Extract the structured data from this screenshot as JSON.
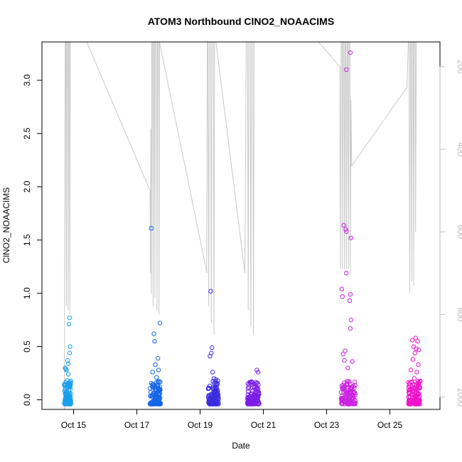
{
  "chart_data": {
    "type": "scatter",
    "title": "ATOM3 Northbound ClNO2_NOAACIMS",
    "xlabel": "Date",
    "ylabel": "ClNO2_NOAACIMS",
    "xlim": [
      "2016-10-14T00:00",
      "2016-10-26T14:00"
    ],
    "ylim": [
      -0.09,
      3.36
    ],
    "y_ticks": [
      0.0,
      0.5,
      1.0,
      1.5,
      2.0,
      2.5,
      3.0
    ],
    "x_ticks": [
      {
        "label": "Oct 15",
        "date": "2016-10-15T00:00"
      },
      {
        "label": "Oct 17",
        "date": "2016-10-17T00:00"
      },
      {
        "label": "Oct 19",
        "date": "2016-10-19T00:00"
      },
      {
        "label": "Oct 21",
        "date": "2016-10-21T00:00"
      },
      {
        "label": "Oct 23",
        "date": "2016-10-23T00:00"
      },
      {
        "label": "Oct 25",
        "date": "2016-10-25T00:00"
      }
    ],
    "secondary_axis": {
      "side": "right",
      "ylim": [
        1030,
        140
      ],
      "ticks": [
        200,
        400,
        600,
        800,
        1000
      ],
      "color": "#bdbdbd"
    },
    "grid": false,
    "legend": "none",
    "flights": [
      {
        "start": "2016-10-14T17:00",
        "end": "2016-10-14T22:00",
        "color": "#1a9fef",
        "samples": [
          [
            "2016-10-14T17:30",
            0.3
          ],
          [
            "2016-10-14T18:00",
            0.29
          ],
          [
            "2016-10-14T18:30",
            0.28
          ],
          [
            "2016-10-14T19:00",
            0.18
          ],
          [
            "2016-10-14T19:30",
            0.37
          ],
          [
            "2016-10-14T20:00",
            0.34
          ],
          [
            "2016-10-14T20:30",
            0.71
          ],
          [
            "2016-10-14T21:00",
            0.77
          ],
          [
            "2016-10-14T21:20",
            0.5
          ],
          [
            "2016-10-14T21:00",
            0.44
          ],
          [
            "2016-10-14T20:00",
            0.24
          ],
          [
            "2016-10-14T19:00",
            0.12
          ]
        ]
      },
      {
        "start": "2016-10-17T10:00",
        "end": "2016-10-17T18:00",
        "color": "#1466e6",
        "samples": [
          [
            "2016-10-17T11:00",
            1.61
          ],
          [
            "2016-10-17T13:00",
            0.62
          ],
          [
            "2016-10-17T13:30",
            0.55
          ],
          [
            "2016-10-17T17:30",
            0.72
          ],
          [
            "2016-10-17T16:00",
            0.39
          ],
          [
            "2016-10-17T14:00",
            0.33
          ],
          [
            "2016-10-17T12:00",
            0.26
          ],
          [
            "2016-10-17T15:00",
            0.21
          ],
          [
            "2016-10-17T16:30",
            0.28
          ]
        ]
      },
      {
        "start": "2016-10-19T06:00",
        "end": "2016-10-19T14:00",
        "color": "#3a2ce0",
        "samples": [
          [
            "2016-10-19T08:00",
            1.02
          ],
          [
            "2016-10-19T09:00",
            0.49
          ],
          [
            "2016-10-19T08:30",
            0.44
          ],
          [
            "2016-10-19T07:30",
            0.41
          ],
          [
            "2016-10-19T09:30",
            0.26
          ],
          [
            "2016-10-19T10:30",
            0.2
          ],
          [
            "2016-10-19T12:00",
            0.19
          ],
          [
            "2016-10-19T13:00",
            0.15
          ]
        ]
      },
      {
        "start": "2016-10-20T12:00",
        "end": "2016-10-20T21:00",
        "color": "#7a1ee6",
        "samples": [
          [
            "2016-10-20T19:00",
            0.28
          ],
          [
            "2016-10-20T20:00",
            0.26
          ],
          [
            "2016-10-20T15:00",
            0.17
          ],
          [
            "2016-10-20T17:00",
            0.15
          ],
          [
            "2016-10-20T13:00",
            0.12
          ]
        ]
      },
      {
        "start": "2016-10-23T11:00",
        "end": "2016-10-23T22:00",
        "color": "#cc22e0",
        "samples": [
          [
            "2016-10-23T18:00",
            3.26
          ],
          [
            "2016-10-23T15:00",
            3.1
          ],
          [
            "2016-10-23T13:00",
            1.64
          ],
          [
            "2016-10-23T15:00",
            1.58
          ],
          [
            "2016-10-23T14:30",
            1.6
          ],
          [
            "2016-10-23T18:30",
            1.52
          ],
          [
            "2016-10-23T15:00",
            1.19
          ],
          [
            "2016-10-23T11:30",
            1.04
          ],
          [
            "2016-10-23T12:00",
            0.97
          ],
          [
            "2016-10-23T18:00",
            0.99
          ],
          [
            "2016-10-23T17:30",
            0.93
          ],
          [
            "2016-10-23T18:30",
            0.75
          ],
          [
            "2016-10-23T18:00",
            0.67
          ],
          [
            "2016-10-23T14:00",
            0.46
          ],
          [
            "2016-10-23T12:30",
            0.43
          ],
          [
            "2016-10-23T13:30",
            0.37
          ],
          [
            "2016-10-23T19:30",
            0.36
          ],
          [
            "2016-10-23T16:00",
            0.3
          ]
        ]
      },
      {
        "start": "2016-10-25T14:00",
        "end": "2016-10-25T23:00",
        "color": "#f011cc",
        "samples": [
          [
            "2016-10-25T19:30",
            0.58
          ],
          [
            "2016-10-25T17:00",
            0.56
          ],
          [
            "2016-10-25T21:00",
            0.55
          ],
          [
            "2016-10-25T18:00",
            0.5
          ],
          [
            "2016-10-25T20:00",
            0.48
          ],
          [
            "2016-10-25T22:00",
            0.47
          ],
          [
            "2016-10-25T19:00",
            0.44
          ],
          [
            "2016-10-25T17:30",
            0.38
          ],
          [
            "2016-10-25T21:30",
            0.33
          ],
          [
            "2016-10-25T16:00",
            0.28
          ],
          [
            "2016-10-25T20:30",
            0.26
          ],
          [
            "2016-10-25T18:30",
            0.2
          ]
        ]
      }
    ],
    "altitude_track": [
      [
        "2016-10-14T15:00",
        1030
      ],
      [
        "2016-10-14T17:00",
        1030
      ],
      [
        "2016-10-14T17:20",
        600
      ],
      [
        "2016-10-14T17:40",
        140
      ],
      [
        "2016-10-14T18:10",
        140
      ],
      [
        "2016-10-14T18:30",
        780
      ],
      [
        "2016-10-14T18:50",
        140
      ],
      [
        "2016-10-14T19:30",
        140
      ],
      [
        "2016-10-14T19:50",
        790
      ],
      [
        "2016-10-14T20:10",
        140
      ],
      [
        "2016-10-14T20:50",
        140
      ],
      [
        "2016-10-14T21:10",
        800
      ],
      [
        "2016-10-14T21:30",
        140
      ],
      [
        "2016-10-15T10:00",
        140
      ],
      [
        "2016-10-17T10:00",
        500
      ],
      [
        "2016-10-17T10:20",
        700
      ],
      [
        "2016-10-17T10:40",
        350
      ],
      [
        "2016-10-17T11:00",
        750
      ],
      [
        "2016-10-17T11:20",
        140
      ],
      [
        "2016-10-17T12:00",
        140
      ],
      [
        "2016-10-17T12:20",
        780
      ],
      [
        "2016-10-17T12:40",
        140
      ],
      [
        "2016-10-17T13:20",
        140
      ],
      [
        "2016-10-17T13:40",
        760
      ],
      [
        "2016-10-17T14:00",
        140
      ],
      [
        "2016-10-17T15:00",
        140
      ],
      [
        "2016-10-17T15:20",
        790
      ],
      [
        "2016-10-17T15:40",
        140
      ],
      [
        "2016-10-17T16:30",
        140
      ],
      [
        "2016-10-17T16:50",
        800
      ],
      [
        "2016-10-17T17:10",
        140
      ],
      [
        "2016-10-19T04:00",
        680
      ],
      [
        "2016-10-19T05:00",
        700
      ],
      [
        "2016-10-19T05:30",
        140
      ],
      [
        "2016-10-19T06:00",
        140
      ],
      [
        "2016-10-19T06:30",
        780
      ],
      [
        "2016-10-19T07:00",
        140
      ],
      [
        "2016-10-19T08:00",
        140
      ],
      [
        "2016-10-19T08:30",
        820
      ],
      [
        "2016-10-19T09:00",
        140
      ],
      [
        "2016-10-19T10:00",
        140
      ],
      [
        "2016-10-19T10:30",
        850
      ],
      [
        "2016-10-19T11:00",
        140
      ],
      [
        "2016-10-19T12:00",
        140
      ],
      [
        "2016-10-20T10:00",
        700
      ],
      [
        "2016-10-20T11:00",
        140
      ],
      [
        "2016-10-20T12:00",
        140
      ],
      [
        "2016-10-20T12:30",
        790
      ],
      [
        "2016-10-20T13:00",
        140
      ],
      [
        "2016-10-20T14:00",
        140
      ],
      [
        "2016-10-20T14:30",
        830
      ],
      [
        "2016-10-20T15:00",
        140
      ],
      [
        "2016-10-20T16:00",
        140
      ],
      [
        "2016-10-20T16:30",
        850
      ],
      [
        "2016-10-20T17:00",
        140
      ],
      [
        "2016-10-20T18:00",
        140
      ],
      [
        "2016-10-22T18:00",
        140
      ],
      [
        "2016-10-23T10:00",
        200
      ],
      [
        "2016-10-23T10:30",
        690
      ],
      [
        "2016-10-23T11:00",
        140
      ],
      [
        "2016-10-23T11:40",
        140
      ],
      [
        "2016-10-23T12:00",
        690
      ],
      [
        "2016-10-23T12:30",
        140
      ],
      [
        "2016-10-23T13:10",
        140
      ],
      [
        "2016-10-23T13:30",
        690
      ],
      [
        "2016-10-23T14:00",
        140
      ],
      [
        "2016-10-23T14:40",
        140
      ],
      [
        "2016-10-23T15:00",
        690
      ],
      [
        "2016-10-23T15:30",
        140
      ],
      [
        "2016-10-23T16:10",
        140
      ],
      [
        "2016-10-23T16:30",
        690
      ],
      [
        "2016-10-23T17:00",
        140
      ],
      [
        "2016-10-23T17:40",
        140
      ],
      [
        "2016-10-23T18:00",
        700
      ],
      [
        "2016-10-23T18:30",
        280
      ],
      [
        "2016-10-23T19:00",
        440
      ],
      [
        "2016-10-25T13:00",
        250
      ],
      [
        "2016-10-25T14:00",
        140
      ],
      [
        "2016-10-25T14:40",
        140
      ],
      [
        "2016-10-25T15:00",
        750
      ],
      [
        "2016-10-25T15:30",
        140
      ],
      [
        "2016-10-25T16:10",
        140
      ],
      [
        "2016-10-25T16:30",
        720
      ],
      [
        "2016-10-25T17:00",
        140
      ],
      [
        "2016-10-25T17:40",
        140
      ],
      [
        "2016-10-25T18:00",
        730
      ],
      [
        "2016-10-25T18:30",
        140
      ],
      [
        "2016-10-25T19:10",
        140
      ],
      [
        "2016-10-25T19:30",
        600
      ],
      [
        "2016-10-25T20:00",
        140
      ],
      [
        "2016-10-25T22:00",
        140
      ]
    ]
  }
}
